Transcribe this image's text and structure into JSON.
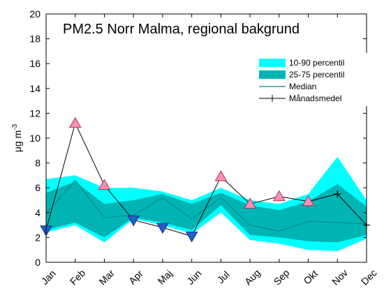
{
  "chart_data": {
    "type": "area",
    "title": "PM2.5 Norr Malma, regional bakgrund",
    "ylabel_main": "μg m",
    "ylabel_exp": "-3",
    "xlabel": "",
    "categories": [
      "Jan",
      "Feb",
      "Mar",
      "Apr",
      "Maj",
      "Jun",
      "Jul",
      "Aug",
      "Sep",
      "Okt",
      "Nov",
      "Dec"
    ],
    "ylim": [
      0,
      20
    ],
    "yticks": [
      0,
      2,
      4,
      6,
      8,
      10,
      12,
      14,
      16,
      18,
      20
    ],
    "grid": false,
    "legend_position": "top-right",
    "series": [
      {
        "name": "10-90 percentil",
        "kind": "band",
        "color": "#00ffff",
        "lower": [
          2.4,
          3.0,
          1.6,
          3.5,
          3.0,
          2.3,
          4.0,
          1.8,
          1.5,
          1.0,
          0.9,
          1.9
        ],
        "upper": [
          6.7,
          7.0,
          6.0,
          6.0,
          5.7,
          5.0,
          6.0,
          5.0,
          4.7,
          5.5,
          8.5,
          5.0
        ]
      },
      {
        "name": "25-75 percentil",
        "kind": "band",
        "color": "#00b4b4",
        "lower": [
          2.6,
          3.2,
          2.0,
          3.6,
          3.2,
          2.6,
          4.6,
          2.2,
          2.0,
          1.7,
          1.6,
          2.2
        ],
        "upper": [
          5.6,
          6.5,
          4.7,
          5.0,
          5.5,
          4.7,
          5.6,
          4.6,
          4.2,
          4.9,
          6.3,
          4.5
        ]
      },
      {
        "name": "Median",
        "kind": "line",
        "color": "#008c8c",
        "values": [
          3.9,
          6.6,
          3.6,
          3.8,
          5.2,
          3.5,
          5.2,
          3.0,
          2.5,
          3.3,
          3.2,
          3.1
        ]
      },
      {
        "name": "Månadsmedel",
        "kind": "line-markers",
        "color": "#000000",
        "values": [
          2.6,
          11.2,
          6.2,
          3.4,
          2.8,
          2.1,
          6.9,
          4.7,
          5.3,
          4.9,
          5.5,
          3.0
        ]
      }
    ],
    "markers": {
      "above_color": "#ff8fb0",
      "below_color": "#1f5fc8",
      "above_indices": [
        1,
        2,
        6,
        7,
        8,
        9
      ],
      "below_indices": [
        0,
        3,
        4,
        5
      ]
    }
  }
}
